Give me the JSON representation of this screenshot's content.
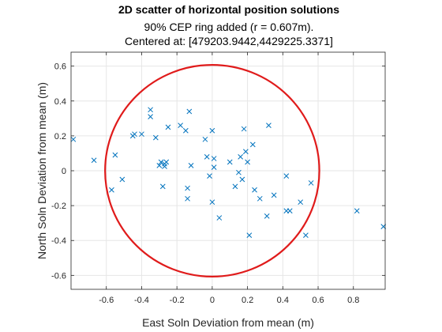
{
  "chart_data": {
    "type": "scatter",
    "title": "2D scatter of horizontal position solutions",
    "subtitle_lines": [
      "90% CEP ring added (r = 0.607m).",
      "Centered at: [479203.9442,4429225.3371]"
    ],
    "xlabel": "East Soln Deviation from mean (m)",
    "ylabel": "North Soln Deviation from mean (m)",
    "xlim": [
      -0.8,
      0.98
    ],
    "ylim": [
      -0.68,
      0.68
    ],
    "xticks": [
      -0.6,
      -0.4,
      -0.2,
      0,
      0.2,
      0.4,
      0.6,
      0.8
    ],
    "yticks": [
      -0.6,
      -0.4,
      -0.2,
      0,
      0.2,
      0.4,
      0.6
    ],
    "xtick_labels": [
      "-0.6",
      "-0.4",
      "-0.2",
      "0",
      "0.2",
      "0.4",
      "0.6",
      "0.8"
    ],
    "ytick_labels": [
      "-0.6",
      "-0.4",
      "-0.2",
      "0",
      "0.2",
      "0.4",
      "0.6"
    ],
    "grid": true,
    "marker": "x",
    "point_color": "#0072BD",
    "circle": {
      "center": [
        0,
        0
      ],
      "radius": 0.607,
      "color": "#e01b1b"
    },
    "series": [
      {
        "x": [
          -0.787,
          -0.67,
          -0.57,
          -0.55,
          -0.51,
          -0.45,
          -0.44,
          -0.4,
          -0.35,
          -0.35,
          -0.32,
          -0.3,
          -0.29,
          -0.28,
          -0.27,
          -0.27,
          -0.26,
          -0.25,
          -0.18,
          -0.15,
          -0.14,
          -0.14,
          -0.13,
          -0.12,
          -0.04,
          -0.03,
          -0.015,
          0.0,
          0.0,
          0.01,
          0.01,
          0.04,
          0.1,
          0.13,
          0.15,
          0.16,
          0.17,
          0.18,
          0.19,
          0.2,
          0.21,
          0.23,
          0.24,
          0.27,
          0.31,
          0.32,
          0.35,
          0.42,
          0.42,
          0.44,
          0.5,
          0.53,
          0.56,
          0.82,
          0.97
        ],
        "y": [
          0.18,
          0.06,
          -0.11,
          0.09,
          -0.05,
          0.2,
          0.21,
          0.21,
          0.35,
          0.31,
          0.19,
          0.03,
          0.05,
          -0.09,
          0.04,
          0.025,
          0.05,
          0.25,
          0.26,
          0.23,
          -0.1,
          -0.16,
          0.34,
          0.03,
          0.18,
          0.08,
          -0.03,
          0.23,
          -0.18,
          0.07,
          0.02,
          -0.27,
          0.05,
          -0.09,
          -0.01,
          0.08,
          -0.05,
          0.24,
          0.11,
          0.05,
          -0.37,
          0.15,
          -0.11,
          -0.16,
          -0.26,
          0.26,
          -0.14,
          -0.03,
          -0.23,
          -0.23,
          -0.18,
          -0.37,
          -0.07,
          -0.23,
          -0.32
        ]
      }
    ]
  }
}
